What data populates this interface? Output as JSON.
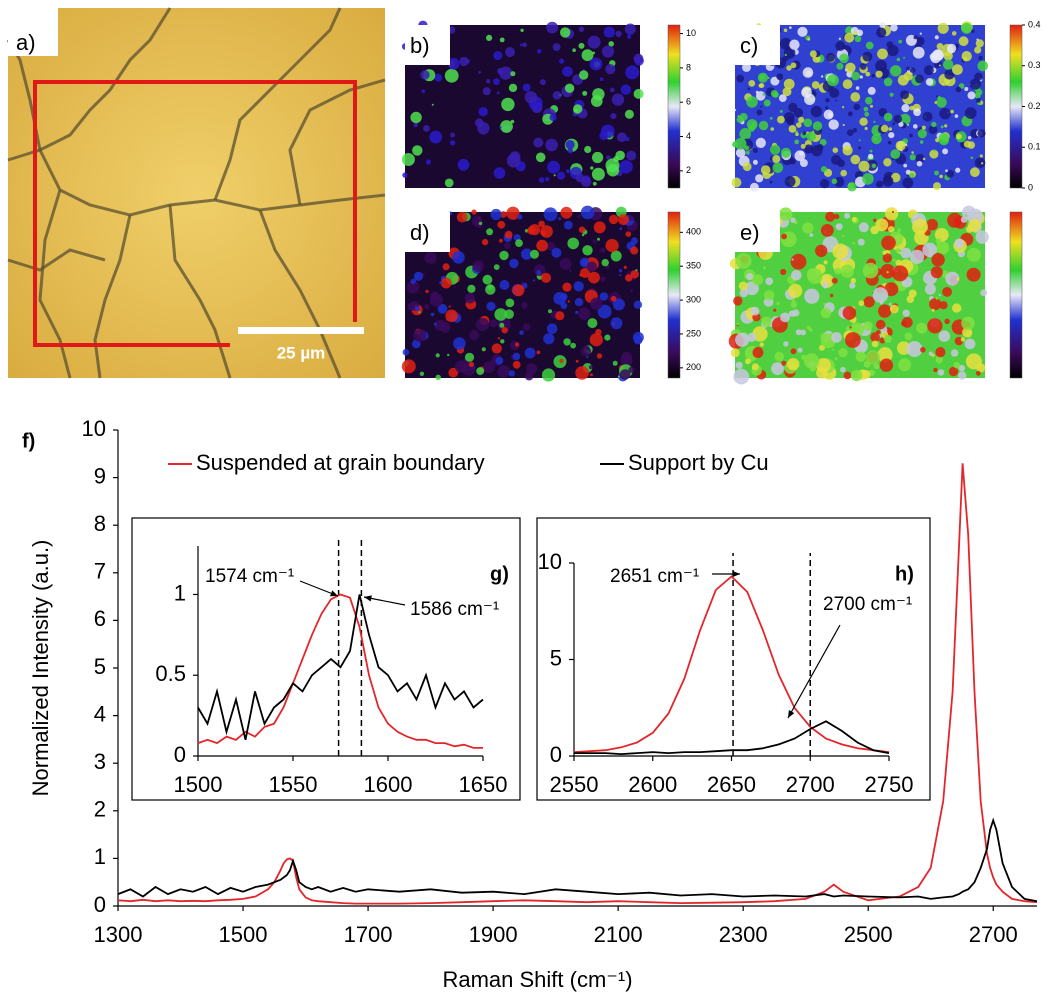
{
  "panels": [
    {
      "label": "a)",
      "scale_bar": "25 µm"
    },
    {
      "label": "b)",
      "colorbar": {
        "lim": [
          1,
          10.5
        ],
        "ticks": [
          2,
          4,
          6,
          8,
          10
        ]
      }
    },
    {
      "label": "c)",
      "colorbar": {
        "lim": [
          0,
          0.4
        ],
        "ticks": [
          0,
          0.1,
          0.2,
          0.3,
          0.4
        ]
      }
    },
    {
      "label": "d)",
      "colorbar": {
        "lim": [
          185,
          430
        ],
        "ticks": [
          200,
          250,
          300,
          350,
          400
        ]
      }
    },
    {
      "label": "e)"
    }
  ],
  "chart_data": [
    {
      "type": "line",
      "panel_label": "f)",
      "x_label": "Raman Shift (cm⁻¹)",
      "y_label": "Normalized Intensity (a.u.)",
      "x": [
        1300,
        1320,
        1340,
        1360,
        1380,
        1400,
        1420,
        1440,
        1460,
        1480,
        1500,
        1520,
        1540,
        1550,
        1560,
        1565,
        1570,
        1575,
        1580,
        1585,
        1590,
        1600,
        1610,
        1620,
        1640,
        1660,
        1680,
        1700,
        1750,
        1800,
        1850,
        1900,
        1950,
        2000,
        2050,
        2100,
        2150,
        2200,
        2250,
        2300,
        2350,
        2400,
        2430,
        2445,
        2460,
        2500,
        2550,
        2580,
        2600,
        2620,
        2635,
        2645,
        2651,
        2660,
        2670,
        2680,
        2690,
        2695,
        2700,
        2705,
        2715,
        2730,
        2750,
        2770
      ],
      "series": [
        {
          "name": "Suspended at grain boundary",
          "color": "#e3262b",
          "values": [
            0.12,
            0.1,
            0.13,
            0.1,
            0.12,
            0.1,
            0.11,
            0.1,
            0.12,
            0.13,
            0.15,
            0.2,
            0.35,
            0.5,
            0.75,
            0.9,
            0.98,
            1.0,
            0.95,
            0.6,
            0.35,
            0.18,
            0.12,
            0.1,
            0.08,
            0.06,
            0.05,
            0.05,
            0.05,
            0.06,
            0.08,
            0.1,
            0.12,
            0.1,
            0.08,
            0.1,
            0.08,
            0.06,
            0.07,
            0.08,
            0.1,
            0.15,
            0.3,
            0.45,
            0.3,
            0.12,
            0.2,
            0.4,
            0.8,
            2.2,
            4.5,
            7.5,
            9.3,
            7.8,
            4.5,
            2.2,
            1.1,
            0.8,
            0.6,
            0.45,
            0.3,
            0.15,
            0.1,
            0.08
          ]
        },
        {
          "name": "Support by Cu",
          "color": "#000000",
          "values": [
            0.25,
            0.35,
            0.2,
            0.4,
            0.25,
            0.35,
            0.3,
            0.4,
            0.25,
            0.38,
            0.3,
            0.4,
            0.45,
            0.5,
            0.55,
            0.6,
            0.65,
            0.75,
            0.95,
            0.75,
            0.5,
            0.4,
            0.35,
            0.4,
            0.3,
            0.38,
            0.3,
            0.35,
            0.3,
            0.35,
            0.28,
            0.3,
            0.25,
            0.35,
            0.3,
            0.25,
            0.28,
            0.22,
            0.25,
            0.2,
            0.22,
            0.2,
            0.25,
            0.2,
            0.22,
            0.2,
            0.18,
            0.2,
            0.15,
            0.18,
            0.2,
            0.25,
            0.3,
            0.35,
            0.5,
            0.8,
            1.2,
            1.6,
            1.8,
            1.6,
            0.9,
            0.4,
            0.15,
            0.1
          ]
        }
      ],
      "xlim": [
        1300,
        2770
      ],
      "ylim": [
        0,
        10
      ],
      "xticks": [
        1300,
        1500,
        1700,
        1900,
        2100,
        2300,
        2500,
        2700
      ],
      "yticks": [
        0,
        1,
        2,
        3,
        4,
        5,
        6,
        7,
        8,
        9,
        10
      ],
      "legend": "top"
    },
    {
      "type": "line",
      "panel_label": "g)",
      "annotations": [
        "1574 cm⁻¹",
        "1586 cm⁻¹"
      ],
      "vlines": [
        1574,
        1586
      ],
      "x": [
        1500,
        1505,
        1510,
        1515,
        1520,
        1525,
        1530,
        1535,
        1540,
        1545,
        1550,
        1555,
        1560,
        1565,
        1570,
        1575,
        1580,
        1585,
        1590,
        1595,
        1600,
        1605,
        1610,
        1615,
        1620,
        1625,
        1630,
        1635,
        1640,
        1645,
        1650
      ],
      "series": [
        {
          "color": "#e3262b",
          "values": [
            0.08,
            0.1,
            0.08,
            0.12,
            0.1,
            0.15,
            0.12,
            0.18,
            0.2,
            0.3,
            0.45,
            0.6,
            0.75,
            0.88,
            0.97,
            1.0,
            0.98,
            0.8,
            0.5,
            0.3,
            0.2,
            0.15,
            0.12,
            0.1,
            0.1,
            0.08,
            0.08,
            0.06,
            0.07,
            0.05,
            0.05
          ]
        },
        {
          "color": "#000000",
          "values": [
            0.3,
            0.2,
            0.4,
            0.15,
            0.35,
            0.1,
            0.4,
            0.2,
            0.3,
            0.35,
            0.45,
            0.4,
            0.5,
            0.55,
            0.6,
            0.55,
            0.65,
            1.0,
            0.75,
            0.55,
            0.5,
            0.4,
            0.45,
            0.35,
            0.5,
            0.3,
            0.45,
            0.35,
            0.4,
            0.3,
            0.35
          ]
        }
      ],
      "xlim": [
        1500,
        1650
      ],
      "ylim": [
        0,
        1.3
      ],
      "xticks": [
        1500,
        1550,
        1600,
        1650
      ],
      "yticks": [
        0,
        0.5,
        1
      ]
    },
    {
      "type": "line",
      "panel_label": "h)",
      "annotations": [
        "2651 cm⁻¹",
        "2700 cm⁻¹"
      ],
      "vlines": [
        2651,
        2700
      ],
      "x": [
        2550,
        2560,
        2570,
        2580,
        2590,
        2600,
        2610,
        2620,
        2630,
        2640,
        2650,
        2660,
        2670,
        2680,
        2690,
        2700,
        2710,
        2720,
        2730,
        2740,
        2750
      ],
      "series": [
        {
          "color": "#e3262b",
          "values": [
            0.2,
            0.25,
            0.3,
            0.45,
            0.7,
            1.2,
            2.2,
            4.0,
            6.5,
            8.6,
            9.3,
            8.5,
            6.5,
            4.2,
            2.5,
            1.5,
            0.9,
            0.6,
            0.4,
            0.3,
            0.2
          ]
        },
        {
          "color": "#000000",
          "values": [
            0.15,
            0.15,
            0.15,
            0.1,
            0.15,
            0.2,
            0.15,
            0.2,
            0.2,
            0.25,
            0.3,
            0.3,
            0.4,
            0.6,
            0.9,
            1.4,
            1.8,
            1.3,
            0.7,
            0.3,
            0.15
          ]
        }
      ],
      "xlim": [
        2550,
        2750
      ],
      "ylim": [
        0,
        10
      ],
      "xticks": [
        2550,
        2600,
        2650,
        2700,
        2750
      ],
      "yticks": [
        0,
        5,
        10
      ]
    }
  ]
}
